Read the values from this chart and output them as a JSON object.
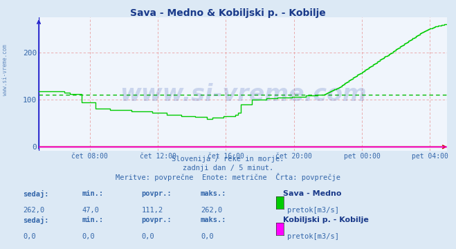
{
  "title": "Sava - Medno & Kobiljski p. - Kobilje",
  "title_color": "#1a3a8a",
  "bg_color": "#dce9f5",
  "plot_bg_color": "#f0f5fc",
  "grid_color": "#e8a0a0",
  "xlabel_color": "#3366aa",
  "ylabel_color": "#3366aa",
  "avg_line_value": 111.2,
  "avg_line_color": "#00bb00",
  "line1_color": "#00cc00",
  "line2_color": "#ff00ff",
  "axis_color_h": "#cc0000",
  "axis_color_v": "#2222cc",
  "x_tick_labels": [
    "čet 08:00",
    "čet 12:00",
    "čet 16:00",
    "čet 20:00",
    "pet 00:00",
    "pet 04:00"
  ],
  "x_tick_positions_frac": [
    0.125,
    0.292,
    0.458,
    0.625,
    0.792,
    0.958
  ],
  "ymax": 275,
  "ymin": -8,
  "yticks": [
    0,
    100,
    200
  ],
  "watermark_text": "www.si-vreme.com",
  "watermark_color": "#2244aa",
  "watermark_alpha": 0.18,
  "subtitle1": "Slovenija / reke in morje.",
  "subtitle2": "zadnji dan / 5 minut.",
  "subtitle3": "Meritve: povprečne  Enote: metrične  Črta: povprečje",
  "subtitle_color": "#3366aa",
  "legend1_label": "Sava - Medno",
  "legend1_sublabel": "pretok[m3/s]",
  "legend2_label": "Kobiljski p. - Kobilje",
  "legend2_sublabel": "pretok[m3/s]",
  "headers": [
    "sedaj:",
    "min.:",
    "povpr.:",
    "maks.:"
  ],
  "stat1_vals": [
    "262,0",
    "47,0",
    "111,2",
    "262,0"
  ],
  "stat2_vals": [
    "0,0",
    "0,0",
    "0,0",
    "0,0"
  ],
  "side_watermark": "www.si-vreme.com",
  "side_watermark_color": "#3366aa",
  "side_watermark_alpha": 0.7
}
